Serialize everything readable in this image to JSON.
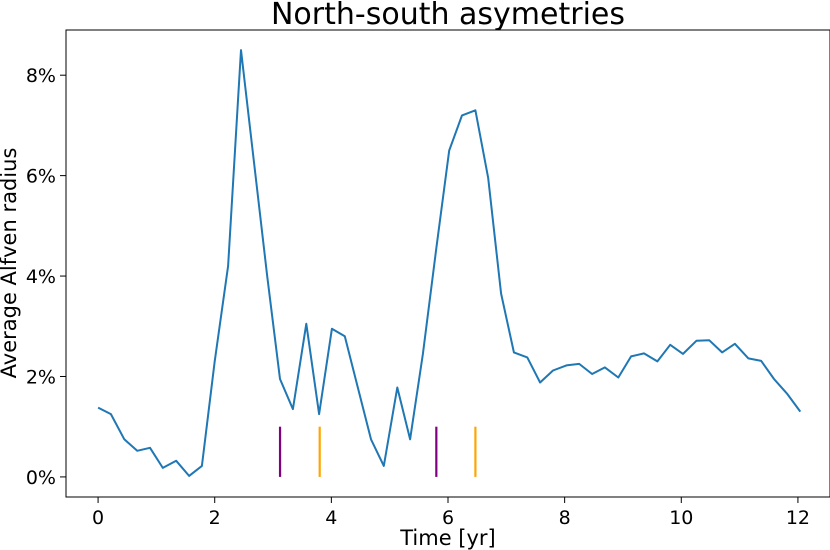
{
  "chart_data": {
    "type": "line",
    "title": "North-south asymetries",
    "xlabel": "Time [yr]",
    "ylabel": "Average Alfven radius",
    "xlim": [
      -0.55,
      12.55
    ],
    "ylim": [
      -0.4,
      8.9
    ],
    "x_ticks": [
      0,
      2,
      4,
      6,
      8,
      10,
      12
    ],
    "x_tick_labels": [
      "0",
      "2",
      "4",
      "6",
      "8",
      "10",
      "12"
    ],
    "y_ticks": [
      0,
      2,
      4,
      6,
      8
    ],
    "y_tick_labels": [
      "0%",
      "2%",
      "4%",
      "6%",
      "8%"
    ],
    "grid": false,
    "series": [
      {
        "color": "#1f77b4",
        "x": [
          0.0,
          0.22,
          0.45,
          0.67,
          0.89,
          1.11,
          1.34,
          1.56,
          1.78,
          2.0,
          2.23,
          2.45,
          2.67,
          2.9,
          3.12,
          3.34,
          3.57,
          3.79,
          4.01,
          4.23,
          4.46,
          4.68,
          4.9,
          5.13,
          5.35,
          5.57,
          5.8,
          6.02,
          6.24,
          6.47,
          6.69,
          6.91,
          7.13,
          7.36,
          7.58,
          7.8,
          8.03,
          8.25,
          8.47,
          8.69,
          8.92,
          9.14,
          9.36,
          9.59,
          9.81,
          10.03,
          10.26,
          10.48,
          10.7,
          10.92,
          11.15,
          11.37,
          11.59,
          11.82,
          12.04
        ],
        "y": [
          1.38,
          1.25,
          0.75,
          0.52,
          0.58,
          0.18,
          0.32,
          0.02,
          0.22,
          2.3,
          4.2,
          8.5,
          6.3,
          4.0,
          1.95,
          1.35,
          3.05,
          1.25,
          2.95,
          2.8,
          1.75,
          0.75,
          0.22,
          1.78,
          0.75,
          2.45,
          4.55,
          6.5,
          7.2,
          7.3,
          5.95,
          3.65,
          2.48,
          2.38,
          1.88,
          2.12,
          2.22,
          2.25,
          2.05,
          2.18,
          1.98,
          2.4,
          2.46,
          2.3,
          2.63,
          2.45,
          2.71,
          2.72,
          2.48,
          2.65,
          2.36,
          2.31,
          1.95,
          1.65,
          1.3
        ]
      }
    ],
    "markers": [
      {
        "x": 3.12,
        "y0": 0,
        "y1": 1.0,
        "color": "#800080"
      },
      {
        "x": 3.8,
        "y0": 0,
        "y1": 1.0,
        "color": "#ffa500"
      },
      {
        "x": 5.8,
        "y0": 0,
        "y1": 1.0,
        "color": "#800080"
      },
      {
        "x": 6.47,
        "y0": 0,
        "y1": 1.0,
        "color": "#ffa500"
      }
    ]
  }
}
